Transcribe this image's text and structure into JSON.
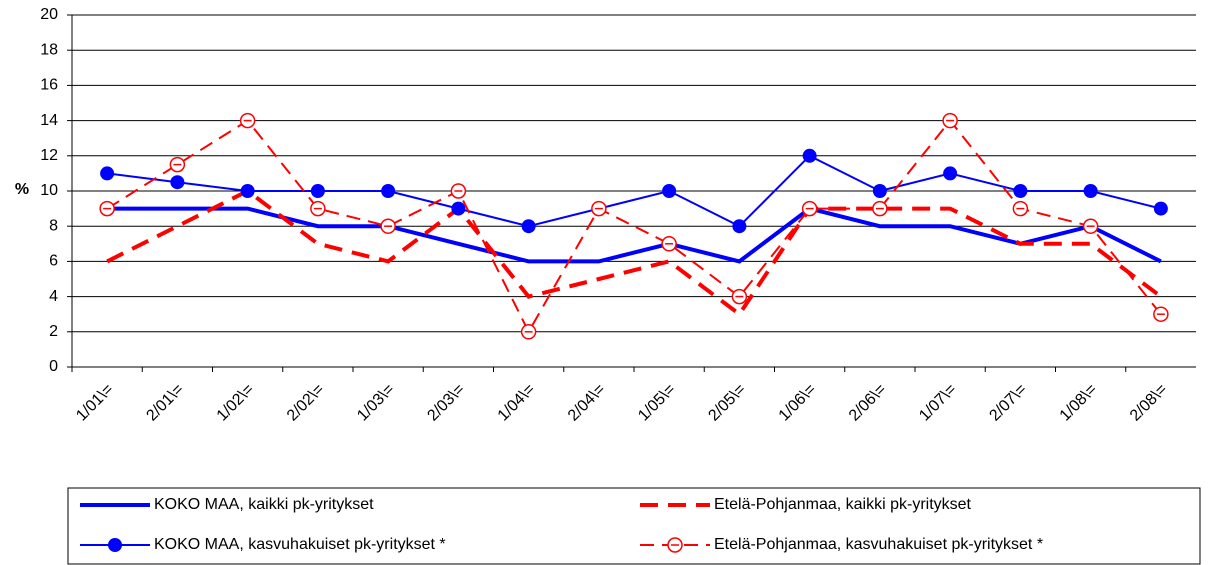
{
  "chart_data": {
    "type": "line",
    "y_label": "%",
    "categories": [
      "1/01\\=",
      "2/01\\=",
      "1/02\\=",
      "2/02\\=",
      "1/03\\=",
      "2/03\\=",
      "1/04\\=",
      "2/04\\=",
      "1/05\\=",
      "2/05\\=",
      "1/06\\=",
      "2/06\\=",
      "1/07\\=",
      "2/07\\=",
      "1/08\\=",
      "2/08\\="
    ],
    "ylim": [
      0,
      20
    ],
    "yticks": [
      0,
      2,
      4,
      6,
      8,
      10,
      12,
      14,
      16,
      18,
      20
    ],
    "grid": true,
    "series": [
      {
        "name": "KOKO MAA, kaikki pk-yritykset",
        "color": "#0000ff",
        "style": "solid-thick",
        "values": [
          9,
          9,
          9,
          8,
          8,
          7,
          6,
          6,
          7,
          6,
          9,
          8,
          8,
          7,
          8,
          6
        ]
      },
      {
        "name": "Etelä-Pohjanmaa, kaikki pk-yritykset",
        "color": "#ff0000",
        "style": "dashed-thick",
        "values": [
          6,
          8,
          10,
          7,
          6,
          9,
          4,
          5,
          6,
          3,
          9,
          9,
          9,
          7,
          7,
          4
        ]
      },
      {
        "name": "KOKO MAA, kasvuhakuiset pk-yritykset *",
        "color": "#0000ff",
        "style": "solid-dot",
        "values": [
          11,
          10.5,
          10,
          10,
          10,
          9,
          8,
          9,
          10,
          8,
          12,
          10,
          11,
          10,
          10,
          9
        ]
      },
      {
        "name": "Etelä-Pohjanmaa, kasvuhakuiset pk-yritykset *",
        "color": "#ff0000",
        "style": "dashed-circle",
        "values": [
          9,
          11.5,
          14,
          9,
          8,
          10,
          2,
          9,
          7,
          4,
          9,
          9,
          14,
          9,
          8,
          3
        ]
      }
    ]
  }
}
